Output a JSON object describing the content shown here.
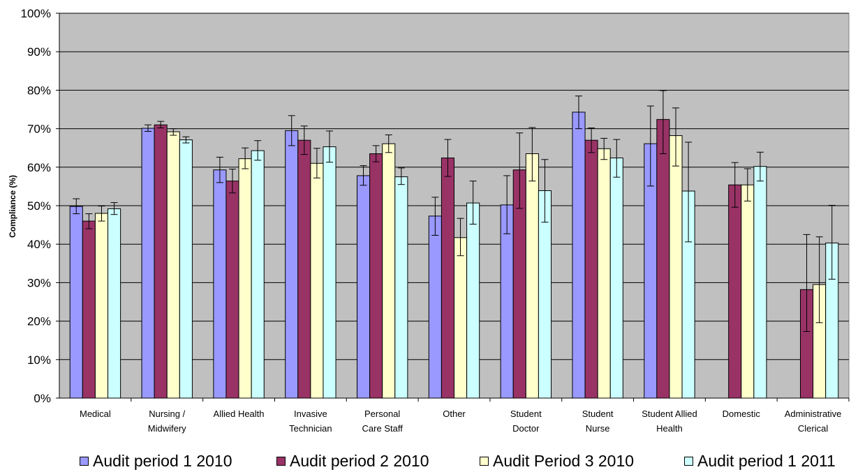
{
  "chart_data": {
    "type": "bar",
    "title": "",
    "xlabel": "",
    "ylabel": "Compliance (%)",
    "ylim": [
      0,
      100
    ],
    "y_ticks": [
      "0%",
      "10%",
      "20%",
      "30%",
      "40%",
      "50%",
      "60%",
      "70%",
      "80%",
      "90%",
      "100%"
    ],
    "grid": true,
    "error_bars": true,
    "legend_position": "bottom",
    "plot_background": "#c0c0c0",
    "categories": [
      [
        "Medical"
      ],
      [
        "Nursing /",
        "Midwifery"
      ],
      [
        "Allied Health"
      ],
      [
        "Invasive",
        "Technician"
      ],
      [
        "Personal",
        "Care Staff"
      ],
      [
        "Other"
      ],
      [
        "Student",
        "Doctor"
      ],
      [
        "Student",
        "Nurse"
      ],
      [
        "Student Allied",
        "Health"
      ],
      [
        "Domestic"
      ],
      [
        "Administrative",
        "Clerical"
      ]
    ],
    "series": [
      {
        "name": "Audit period 1 2010",
        "color": "#9999ff",
        "values": [
          49.8,
          70.1,
          59.3,
          69.5,
          57.8,
          47.3,
          50.2,
          74.3,
          66.1,
          null,
          null
        ],
        "err_low": [
          47.9,
          69.3,
          56.0,
          65.6,
          55.3,
          42.3,
          42.7,
          70.0,
          55.1,
          null,
          null
        ],
        "err_high": [
          51.8,
          71.0,
          62.6,
          73.4,
          60.4,
          52.2,
          57.8,
          78.5,
          75.9,
          null,
          null
        ]
      },
      {
        "name": "Audit period 2 2010",
        "color": "#993366",
        "values": [
          46.0,
          71.0,
          56.4,
          67.0,
          63.5,
          62.4,
          59.3,
          67.0,
          72.4,
          55.4,
          28.2
        ],
        "err_low": [
          44.0,
          70.2,
          53.3,
          63.3,
          61.4,
          57.6,
          49.3,
          63.8,
          63.5,
          49.6,
          17.3
        ],
        "err_high": [
          47.9,
          71.9,
          59.5,
          70.7,
          65.6,
          67.2,
          68.9,
          70.2,
          79.9,
          61.2,
          42.5
        ]
      },
      {
        "name": "Audit Period 3 2010",
        "color": "#ffffcc",
        "values": [
          48.0,
          69.2,
          62.2,
          61.0,
          66.1,
          41.7,
          63.5,
          64.8,
          68.2,
          55.4,
          29.5
        ],
        "err_low": [
          46.0,
          68.3,
          59.6,
          57.2,
          63.8,
          37.0,
          56.4,
          62.0,
          60.3,
          51.2,
          19.6
        ],
        "err_high": [
          49.9,
          70.0,
          65.0,
          64.9,
          68.4,
          46.7,
          70.3,
          67.5,
          75.4,
          59.6,
          41.9
        ]
      },
      {
        "name": "Audit period 1 2011",
        "color": "#ccffff",
        "values": [
          49.2,
          67.1,
          64.3,
          65.3,
          57.5,
          50.7,
          53.9,
          62.4,
          53.8,
          60.2,
          40.3
        ],
        "err_low": [
          47.7,
          66.3,
          61.8,
          61.3,
          55.5,
          45.2,
          45.7,
          57.4,
          40.6,
          56.4,
          30.9
        ],
        "err_high": [
          50.8,
          67.9,
          66.9,
          69.4,
          59.8,
          56.4,
          62.0,
          67.2,
          66.5,
          63.9,
          50.1
        ]
      }
    ]
  }
}
